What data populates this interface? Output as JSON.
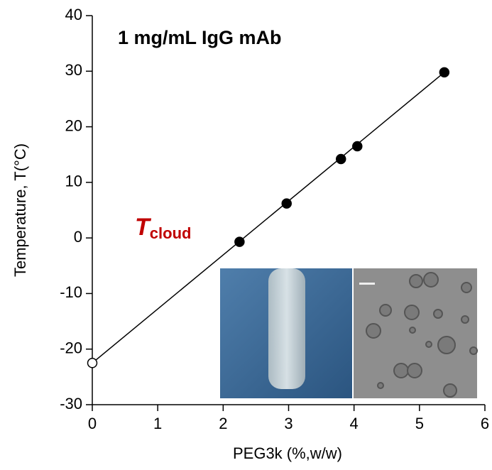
{
  "chart_data": {
    "type": "scatter",
    "x_label": "PEG3k (%,w/w)",
    "y_label": "Temperature, T(°C)",
    "xlim": [
      0,
      6
    ],
    "xticks": [
      0,
      1,
      2,
      3,
      4,
      5,
      6
    ],
    "ylim": [
      -30,
      40
    ],
    "yticks": [
      -30,
      -20,
      -10,
      0,
      10,
      20,
      30,
      40
    ],
    "series": [
      {
        "color": "#000000",
        "x": [
          0,
          2.25,
          2.97,
          3.8,
          4.05,
          5.38
        ],
        "values": [
          -22.5,
          -0.7,
          6.2,
          14.2,
          16.5,
          29.8
        ],
        "hollow": [
          true,
          false,
          false,
          false,
          false,
          false
        ]
      },
      {
        "color": "#000000",
        "style": "line",
        "x": [
          0,
          5.38
        ],
        "values": [
          -22.5,
          29.8
        ]
      }
    ],
    "annotations": [
      {
        "text": "1 mg/mL IgG mAb",
        "color": "#2e75b6"
      },
      {
        "text": "T",
        "subscript": "cloud",
        "color": "#c00000"
      }
    ]
  }
}
